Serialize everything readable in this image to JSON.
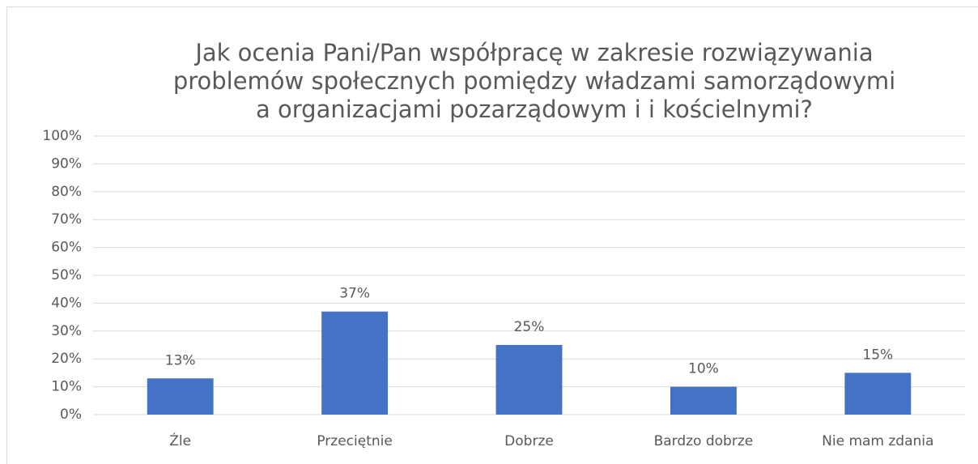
{
  "chart_data": {
    "type": "bar",
    "title": [
      "Jak ocenia Pani/Pan współpracę w zakresie rozwiązywania",
      "problemów społecznych pomiędzy władzami samorządowymi",
      "a organizacjami pozarządowym i i kościelnymi?"
    ],
    "categories": [
      "Źle",
      "Przeciętnie",
      "Dobrze",
      "Bardzo dobrze",
      "Nie mam zdania"
    ],
    "values": [
      13,
      37,
      25,
      10,
      15
    ],
    "value_labels": [
      "13%",
      "37%",
      "25%",
      "10%",
      "15%"
    ],
    "color": "#4472c4",
    "ylim": [
      0,
      100
    ],
    "yticks": [
      {
        "value": 0,
        "label": "0%"
      },
      {
        "value": 10,
        "label": "10%"
      },
      {
        "value": 20,
        "label": "20%"
      },
      {
        "value": 30,
        "label": "30%"
      },
      {
        "value": 40,
        "label": "40%"
      },
      {
        "value": 50,
        "label": "50%"
      },
      {
        "value": 60,
        "label": "60%"
      },
      {
        "value": 70,
        "label": "70%"
      },
      {
        "value": 80,
        "label": "80%"
      },
      {
        "value": 90,
        "label": "90%"
      },
      {
        "value": 100,
        "label": "100%"
      }
    ],
    "grid": true
  }
}
